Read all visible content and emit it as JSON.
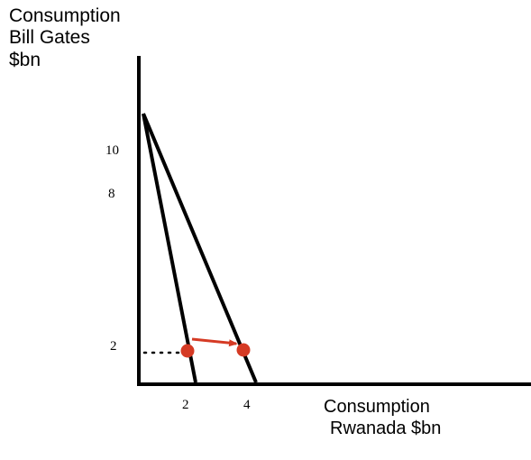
{
  "chart_data": {
    "type": "line",
    "ylabel_lines": [
      "Consumption",
      "Bill Gates",
      "$bn"
    ],
    "xlabel_lines": [
      "Consumption",
      "Rwanada $bn"
    ],
    "y_ticks": [
      "10",
      "8",
      "2"
    ],
    "x_ticks": [
      "2",
      "4"
    ],
    "series": [
      {
        "x": [
          0,
          2.4
        ],
        "y": [
          11,
          0
        ]
      },
      {
        "x": [
          0,
          4.4
        ],
        "y": [
          11,
          0
        ]
      }
    ],
    "points": [
      {
        "x": 2,
        "y": 1.2
      },
      {
        "x": 4,
        "y": 1.2
      }
    ],
    "guide": {
      "from_x": 0,
      "to_x": 2,
      "y": 1.2
    },
    "arrow": {
      "from": [
        2,
        1.2
      ],
      "to": [
        4,
        1.2
      ]
    },
    "colors": {
      "axis": "#000000",
      "line": "#000000",
      "point": "#d53a24",
      "arrow": "#d53a24"
    }
  }
}
